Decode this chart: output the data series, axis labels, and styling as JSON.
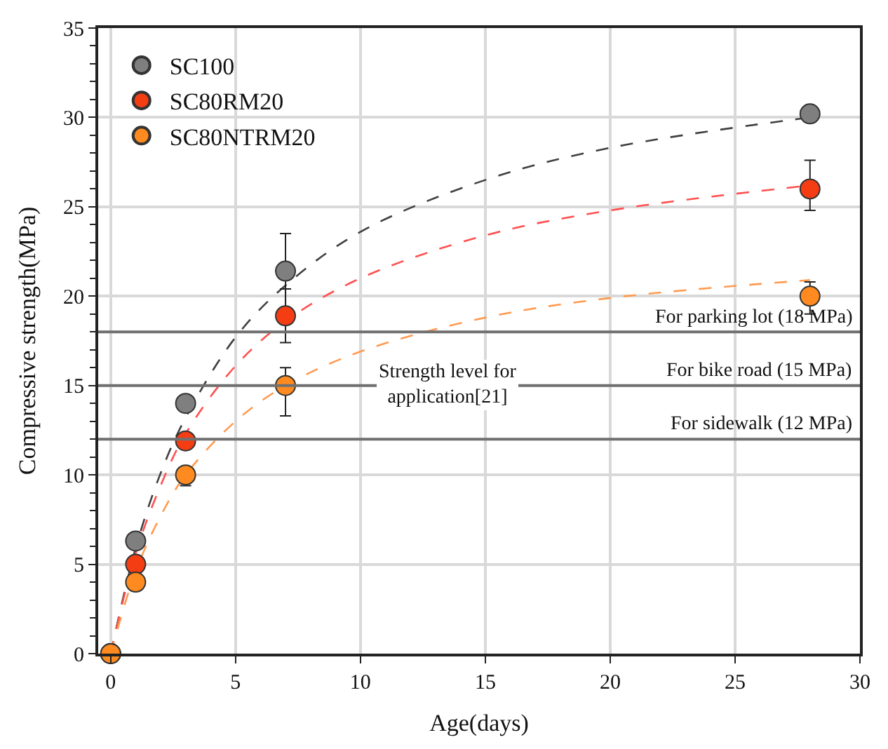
{
  "chart_data": {
    "type": "scatter",
    "xlabel": "Age(days)",
    "ylabel": "Compressive strength(MPa)",
    "xlim": [
      -0.5,
      30
    ],
    "ylim": [
      0,
      35
    ],
    "xticks": [
      0,
      5,
      10,
      15,
      20,
      25,
      30
    ],
    "yticks": [
      0,
      5,
      10,
      15,
      20,
      25,
      30,
      35
    ],
    "grid": true,
    "legend": "top left",
    "marker": "circle",
    "series": [
      {
        "name": "SC100",
        "color": "#7f7f7f",
        "x": [
          0,
          1,
          3,
          7,
          28
        ],
        "values": [
          0,
          6.3,
          14,
          21.4,
          30.2
        ],
        "errors": [
          null,
          null,
          null,
          2.1,
          null
        ]
      },
      {
        "name": "SC80RM20",
        "color": "#f53d14",
        "x": [
          0,
          1,
          3,
          7,
          28
        ],
        "values": [
          0,
          5,
          11.9,
          18.9,
          26
        ],
        "errors": [
          null,
          null,
          null,
          1.5,
          [
            24.8,
            27.6
          ]
        ]
      },
      {
        "name": "SC80NTRM20",
        "color": "#ff8a1f",
        "x": [
          0,
          1,
          3,
          7,
          28
        ],
        "values": [
          0,
          4,
          10,
          15,
          20
        ],
        "errors": [
          null,
          null,
          [
            9.4,
            10.3
          ],
          [
            13.3,
            16
          ],
          [
            19,
            20.8
          ]
        ]
      },
      {
        "type": "line",
        "color": "#404040",
        "line_style": "dashed",
        "marker": "none",
        "x": [
          0,
          1,
          2,
          3,
          5,
          7,
          10,
          15,
          20,
          28
        ],
        "values": [
          0,
          5.9,
          10.1,
          13.2,
          17.7,
          20.6,
          23.6,
          26.5,
          28.3,
          30
        ]
      },
      {
        "type": "line",
        "color": "#ff5050",
        "line_style": "dashed",
        "marker": "none",
        "x": [
          0,
          1,
          2,
          3,
          5,
          7,
          10,
          15,
          20,
          28
        ],
        "values": [
          0,
          5.6,
          9.4,
          12.3,
          16.1,
          18.6,
          21,
          23.4,
          24.8,
          26.2
        ]
      },
      {
        "type": "line",
        "color": "#ff9a50",
        "line_style": "dashed",
        "marker": "none",
        "x": [
          0,
          1,
          2,
          3,
          5,
          7,
          10,
          15,
          20,
          28
        ],
        "values": [
          0,
          4.6,
          7.7,
          10,
          13,
          15,
          16.9,
          18.8,
          19.9,
          20.9
        ]
      }
    ],
    "ref_lines": [
      {
        "axis": "y",
        "value": 18,
        "label": "For parking lot (18 MPa)",
        "color": "#707070"
      },
      {
        "axis": "y",
        "value": 15,
        "label": "For bike road (15 MPa)",
        "color": "#707070"
      },
      {
        "axis": "y",
        "value": 12,
        "label": "For sidewalk (12 MPa)",
        "color": "#707070"
      }
    ],
    "annotations": [
      {
        "text": "Strength level for\napplication[21]",
        "x": 13.5,
        "y": 15
      }
    ]
  }
}
